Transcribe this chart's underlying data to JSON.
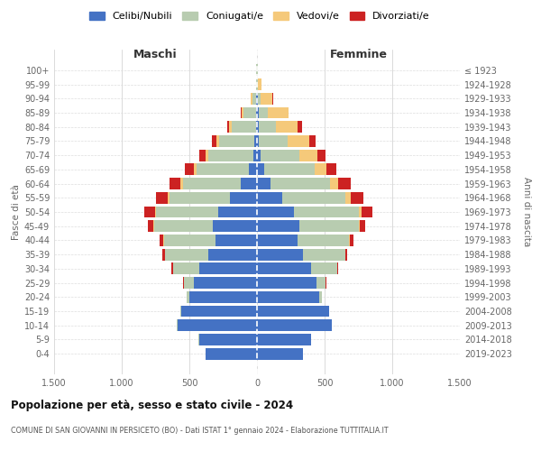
{
  "age_groups": [
    "0-4",
    "5-9",
    "10-14",
    "15-19",
    "20-24",
    "25-29",
    "30-34",
    "35-39",
    "40-44",
    "45-49",
    "50-54",
    "55-59",
    "60-64",
    "65-69",
    "70-74",
    "75-79",
    "80-84",
    "85-89",
    "90-94",
    "95-99",
    "100+"
  ],
  "birth_years": [
    "2019-2023",
    "2014-2018",
    "2009-2013",
    "2004-2008",
    "1999-2003",
    "1994-1998",
    "1989-1993",
    "1984-1988",
    "1979-1983",
    "1974-1978",
    "1969-1973",
    "1964-1968",
    "1959-1963",
    "1954-1958",
    "1949-1953",
    "1944-1948",
    "1939-1943",
    "1934-1938",
    "1929-1933",
    "1924-1928",
    "≤ 1923"
  ],
  "males": {
    "celibi": [
      380,
      430,
      590,
      560,
      500,
      470,
      430,
      360,
      310,
      330,
      290,
      200,
      120,
      60,
      30,
      20,
      10,
      10,
      5,
      2,
      2
    ],
    "coniugati": [
      0,
      2,
      2,
      5,
      20,
      70,
      190,
      320,
      380,
      430,
      460,
      450,
      430,
      390,
      330,
      260,
      180,
      90,
      30,
      5,
      2
    ],
    "vedovi": [
      0,
      0,
      0,
      0,
      0,
      2,
      2,
      2,
      3,
      5,
      5,
      10,
      15,
      15,
      20,
      20,
      20,
      15,
      10,
      2,
      0
    ],
    "divorziati": [
      0,
      0,
      0,
      0,
      2,
      5,
      10,
      20,
      30,
      40,
      80,
      90,
      80,
      70,
      50,
      35,
      10,
      5,
      2,
      0,
      0
    ]
  },
  "females": {
    "nubili": [
      340,
      400,
      550,
      530,
      460,
      440,
      400,
      340,
      300,
      310,
      270,
      185,
      100,
      55,
      25,
      15,
      10,
      10,
      5,
      3,
      2
    ],
    "coniugate": [
      0,
      2,
      2,
      5,
      18,
      65,
      190,
      310,
      380,
      440,
      480,
      470,
      440,
      370,
      290,
      210,
      130,
      70,
      20,
      5,
      2
    ],
    "vedove": [
      0,
      0,
      0,
      0,
      0,
      2,
      2,
      3,
      5,
      10,
      20,
      35,
      60,
      90,
      130,
      160,
      160,
      150,
      90,
      25,
      5
    ],
    "divorziate": [
      0,
      0,
      0,
      0,
      2,
      3,
      8,
      15,
      25,
      40,
      85,
      95,
      90,
      70,
      60,
      45,
      30,
      5,
      5,
      0,
      0
    ]
  },
  "colors": {
    "celibi_nubili": "#4472C4",
    "coniugati": "#B8CCB0",
    "vedovi": "#F5C97A",
    "divorziati": "#CC2222"
  },
  "title": "Popolazione per età, sesso e stato civile - 2024",
  "subtitle": "COMUNE DI SAN GIOVANNI IN PERSICETO (BO) - Dati ISTAT 1° gennaio 2024 - Elaborazione TUTTITALIA.IT",
  "xlabel_left": "Maschi",
  "xlabel_right": "Femmine",
  "ylabel_left": "Fasce di età",
  "ylabel_right": "Anni di nascita",
  "xlim": 1500,
  "xtick_labels": [
    "1.500",
    "1.000",
    "500",
    "0",
    "500",
    "1.000",
    "1.500"
  ],
  "legend_labels": [
    "Celibi/Nubili",
    "Coniugati/e",
    "Vedovi/e",
    "Divorziati/e"
  ],
  "background_color": "#ffffff",
  "grid_color": "#cccccc"
}
